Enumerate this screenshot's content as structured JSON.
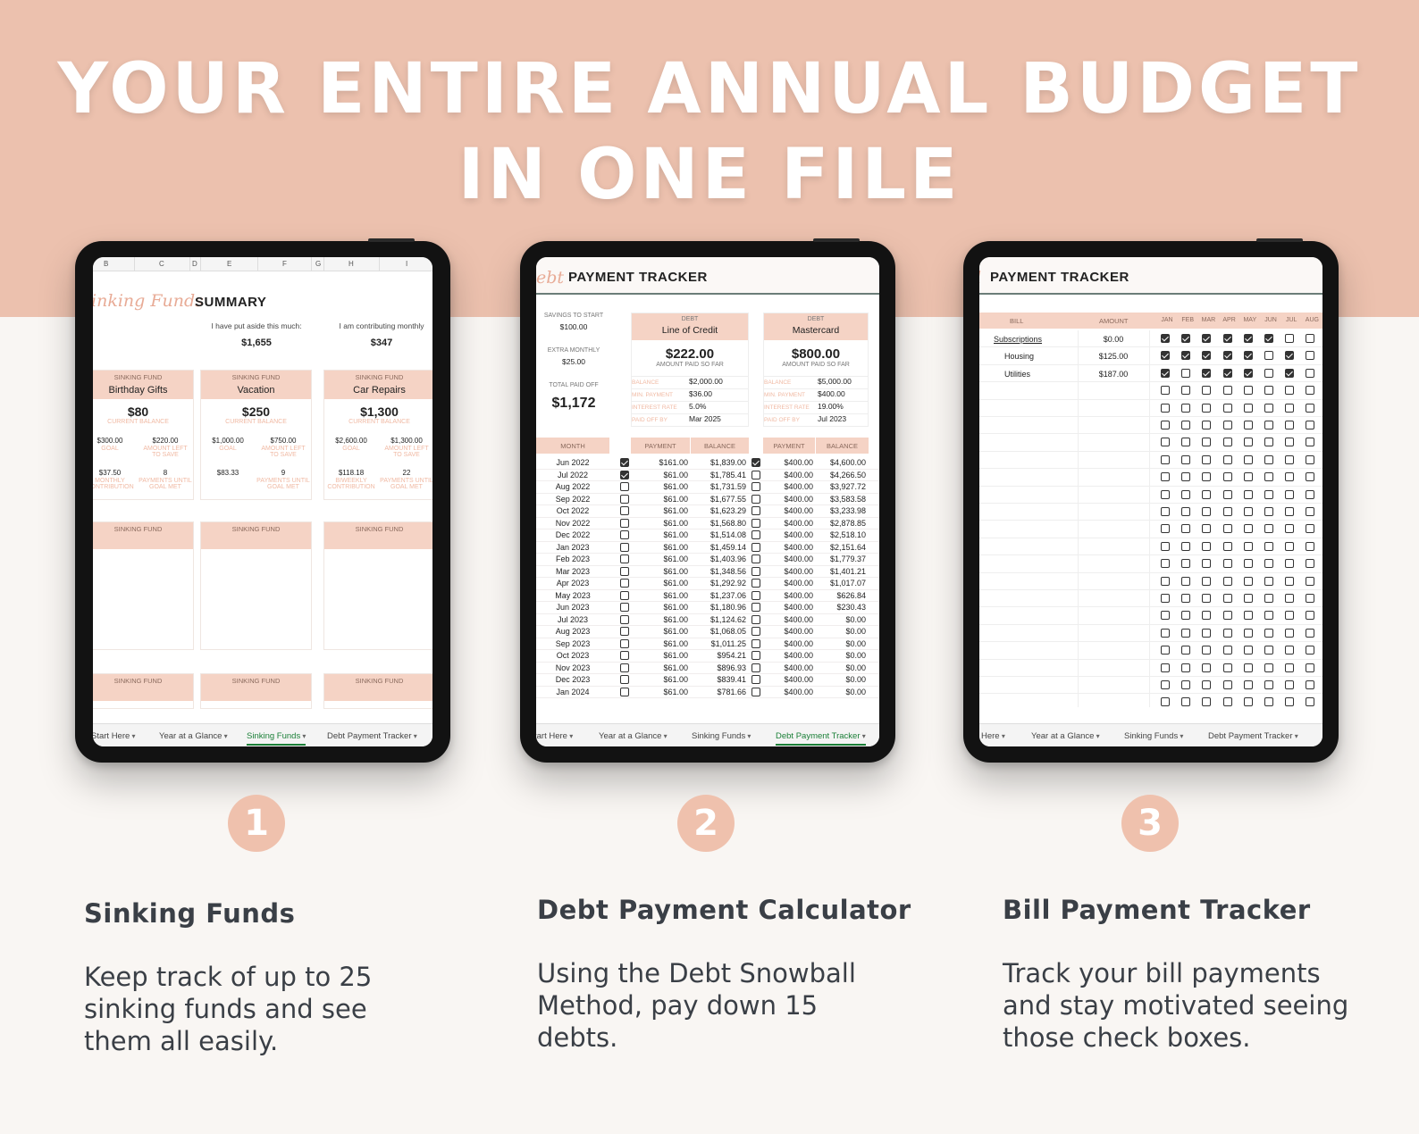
{
  "headline": {
    "line1": "YOUR ENTIRE ANNUAL BUDGET",
    "line2": "IN ONE FILE"
  },
  "tabs": [
    "Start Here",
    "Year at a Glance",
    "Sinking Funds",
    "Debt Payment Tracker"
  ],
  "tabs_cut": {
    "t1_start": "tart Here",
    "t1_bill": "Here",
    "t1_sink": "Start Here"
  },
  "sinking": {
    "columns": [
      "B",
      "C",
      "D",
      "E",
      "F",
      "G",
      "H",
      "I"
    ],
    "title_script": "inking Funds",
    "title_bold": "SUMMARY",
    "aside_label": "I have put aside this much:",
    "aside_value": "$1,655",
    "contrib_label": "I am contributing monthly",
    "contrib_value": "$347",
    "fund_label": "SINKING FUND",
    "current_balance_label": "CURRENT BALANCE",
    "goal_label": "GOAL",
    "left_label": "AMOUNT LEFT TO SAVE",
    "monthly_label": "MONTHLY CONTRIBUTION",
    "biweekly_label": "BIWEEKLY CONTRIBUTION",
    "payments_label": "PAYMENTS UNTIL GOAL MET",
    "funds": [
      {
        "name": "Birthday Gifts",
        "balance": "$80",
        "goal": "$300.00",
        "left": "$220.00",
        "contrib": "$37.50",
        "payments": "8"
      },
      {
        "name": "Vacation",
        "balance": "$250",
        "goal": "$1,000.00",
        "left": "$750.00",
        "contrib": "$83.33",
        "payments": "9"
      },
      {
        "name": "Car Repairs",
        "balance": "$1,300",
        "goal": "$2,600.00",
        "left": "$1,300.00",
        "contrib": "$118.18",
        "payments": "22"
      }
    ]
  },
  "debt": {
    "title_script": "ebt",
    "title_bold": "PAYMENT TRACKER",
    "savings_label": "SAVINGS TO START",
    "savings_value": "$100.00",
    "extra_label": "EXTRA MONTHLY",
    "extra_value": "$25.00",
    "total_label": "TOTAL PAID OFF",
    "total_value": "$1,172",
    "debt_label": "DEBT",
    "paid_label": "AMOUNT PAID SO FAR",
    "field_labels": [
      "BALANCE",
      "MIN. PAYMENT",
      "INTEREST RATE",
      "PAID OFF BY"
    ],
    "debts": [
      {
        "name": "Line of Credit",
        "paid": "$222.00",
        "fields": [
          "$2,000.00",
          "$36.00",
          "5.0%",
          "Mar 2025"
        ]
      },
      {
        "name": "Mastercard",
        "paid": "$800.00",
        "fields": [
          "$5,000.00",
          "$400.00",
          "19.00%",
          "Jul 2023"
        ]
      }
    ],
    "col_month": "MONTH",
    "col_payment": "PAYMENT",
    "col_balance": "BALANCE",
    "rows": [
      {
        "m": "Jun 2022",
        "c1": true,
        "p1": "$161.00",
        "b1": "$1,839.00",
        "c2": true,
        "p2": "$400.00",
        "b2": "$4,600.00"
      },
      {
        "m": "Jul 2022",
        "c1": true,
        "p1": "$61.00",
        "b1": "$1,785.41",
        "c2": false,
        "p2": "$400.00",
        "b2": "$4,266.50"
      },
      {
        "m": "Aug 2022",
        "c1": false,
        "p1": "$61.00",
        "b1": "$1,731.59",
        "c2": false,
        "p2": "$400.00",
        "b2": "$3,927.72"
      },
      {
        "m": "Sep 2022",
        "c1": false,
        "p1": "$61.00",
        "b1": "$1,677.55",
        "c2": false,
        "p2": "$400.00",
        "b2": "$3,583.58"
      },
      {
        "m": "Oct 2022",
        "c1": false,
        "p1": "$61.00",
        "b1": "$1,623.29",
        "c2": false,
        "p2": "$400.00",
        "b2": "$3,233.98"
      },
      {
        "m": "Nov 2022",
        "c1": false,
        "p1": "$61.00",
        "b1": "$1,568.80",
        "c2": false,
        "p2": "$400.00",
        "b2": "$2,878.85"
      },
      {
        "m": "Dec 2022",
        "c1": false,
        "p1": "$61.00",
        "b1": "$1,514.08",
        "c2": false,
        "p2": "$400.00",
        "b2": "$2,518.10"
      },
      {
        "m": "Jan 2023",
        "c1": false,
        "p1": "$61.00",
        "b1": "$1,459.14",
        "c2": false,
        "p2": "$400.00",
        "b2": "$2,151.64"
      },
      {
        "m": "Feb 2023",
        "c1": false,
        "p1": "$61.00",
        "b1": "$1,403.96",
        "c2": false,
        "p2": "$400.00",
        "b2": "$1,779.37"
      },
      {
        "m": "Mar 2023",
        "c1": false,
        "p1": "$61.00",
        "b1": "$1,348.56",
        "c2": false,
        "p2": "$400.00",
        "b2": "$1,401.21"
      },
      {
        "m": "Apr 2023",
        "c1": false,
        "p1": "$61.00",
        "b1": "$1,292.92",
        "c2": false,
        "p2": "$400.00",
        "b2": "$1,017.07"
      },
      {
        "m": "May 2023",
        "c1": false,
        "p1": "$61.00",
        "b1": "$1,237.06",
        "c2": false,
        "p2": "$400.00",
        "b2": "$626.84"
      },
      {
        "m": "Jun 2023",
        "c1": false,
        "p1": "$61.00",
        "b1": "$1,180.96",
        "c2": false,
        "p2": "$400.00",
        "b2": "$230.43"
      },
      {
        "m": "Jul 2023",
        "c1": false,
        "p1": "$61.00",
        "b1": "$1,124.62",
        "c2": false,
        "p2": "$400.00",
        "b2": "$0.00"
      },
      {
        "m": "Aug 2023",
        "c1": false,
        "p1": "$61.00",
        "b1": "$1,068.05",
        "c2": false,
        "p2": "$400.00",
        "b2": "$0.00"
      },
      {
        "m": "Sep 2023",
        "c1": false,
        "p1": "$61.00",
        "b1": "$1,011.25",
        "c2": false,
        "p2": "$400.00",
        "b2": "$0.00"
      },
      {
        "m": "Oct 2023",
        "c1": false,
        "p1": "$61.00",
        "b1": "$954.21",
        "c2": false,
        "p2": "$400.00",
        "b2": "$0.00"
      },
      {
        "m": "Nov 2023",
        "c1": false,
        "p1": "$61.00",
        "b1": "$896.93",
        "c2": false,
        "p2": "$400.00",
        "b2": "$0.00"
      },
      {
        "m": "Dec 2023",
        "c1": false,
        "p1": "$61.00",
        "b1": "$839.41",
        "c2": false,
        "p2": "$400.00",
        "b2": "$0.00"
      },
      {
        "m": "Jan 2024",
        "c1": false,
        "p1": "$61.00",
        "b1": "$781.66",
        "c2": false,
        "p2": "$400.00",
        "b2": "$0.00"
      }
    ]
  },
  "bill": {
    "title_bold": "PAYMENT TRACKER",
    "col_bill": "BILL",
    "col_amount": "AMOUNT",
    "months": [
      "JAN",
      "FEB",
      "MAR",
      "APR",
      "MAY",
      "JUN",
      "JUL",
      "AUG"
    ],
    "bills": [
      {
        "name": "Subscriptions",
        "amount": "$0.00",
        "checks": [
          true,
          true,
          true,
          true,
          true,
          true,
          false,
          false
        ]
      },
      {
        "name": "Housing",
        "amount": "$125.00",
        "checks": [
          true,
          true,
          true,
          true,
          true,
          false,
          true,
          false
        ]
      },
      {
        "name": "Utilities",
        "amount": "$187.00",
        "checks": [
          true,
          false,
          true,
          true,
          true,
          false,
          true,
          false
        ]
      }
    ]
  },
  "features": [
    {
      "num": "1",
      "title": "Sinking Funds",
      "desc": "Keep track of up to 25 sinking funds and see them all easily."
    },
    {
      "num": "2",
      "title": "Debt Payment Calculator",
      "desc": "Using the Debt Snowball Method, pay down 15 debts."
    },
    {
      "num": "3",
      "title": "Bill Payment Tracker",
      "desc": "Track your bill payments and stay motivated seeing those check boxes."
    }
  ]
}
